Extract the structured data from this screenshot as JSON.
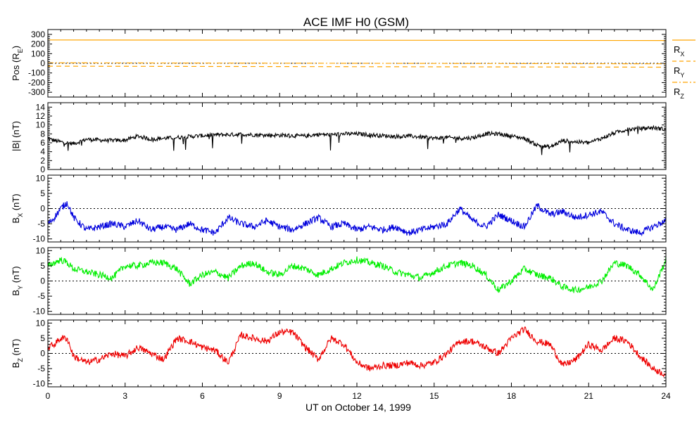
{
  "title": "ACE IMF H0 (GSM)",
  "x_axis_title": "UT on October 14, 1999",
  "x_ticks": [
    "0",
    "3",
    "6",
    "9",
    "12",
    "15",
    "18",
    "21",
    "24"
  ],
  "chart_data": [
    {
      "type": "line",
      "ylabel": "Pos (RE)",
      "ylabel_main": "Pos (R",
      "ylabel_sub": "E",
      "ylabel_tail": ")",
      "ylim": [
        -350,
        350
      ],
      "yticks": [
        -300,
        -200,
        -100,
        0,
        100,
        200,
        300
      ],
      "zero_line": true,
      "grid": false,
      "legend_position": "right",
      "series": [
        {
          "name": "RX",
          "name_main": "R",
          "name_sub": "X",
          "style": "solid",
          "color": "#FFA500",
          "x": [
            0,
            24
          ],
          "values": [
            242,
            236
          ]
        },
        {
          "name": "RY",
          "name_main": "R",
          "name_sub": "Y",
          "style": "dashed",
          "color": "#FFA500",
          "x": [
            0,
            24
          ],
          "values": [
            -30,
            -40
          ]
        },
        {
          "name": "RZ",
          "name_main": "R",
          "name_sub": "Z",
          "style": "dashdot",
          "color": "#FFA500",
          "x": [
            0,
            24
          ],
          "values": [
            5,
            -5
          ]
        }
      ]
    },
    {
      "type": "line",
      "ylabel": "|B| (nT)",
      "ylim": [
        0,
        15
      ],
      "yticks": [
        0,
        2,
        4,
        6,
        8,
        10,
        12,
        14
      ],
      "zero_line": false,
      "grid": false,
      "series": [
        {
          "name": "",
          "color": "#000000",
          "x": [
            0,
            0.25,
            0.5,
            0.75,
            1,
            1.5,
            2,
            2.5,
            3,
            3.5,
            4,
            4.5,
            5,
            5.5,
            6,
            6.5,
            7,
            7.5,
            8,
            8.5,
            9,
            9.5,
            10,
            10.5,
            11,
            11.5,
            12,
            12.5,
            13,
            13.5,
            14,
            14.5,
            15,
            15.5,
            16,
            16.5,
            17,
            17.5,
            18,
            18.5,
            19,
            19.5,
            20,
            20.5,
            21,
            21.5,
            22,
            22.5,
            23,
            23.5,
            24
          ],
          "values": [
            7,
            6.5,
            6.2,
            6,
            5.8,
            6.8,
            6.6,
            6.5,
            6.6,
            7.5,
            6.8,
            7,
            7.2,
            7.4,
            7.6,
            7.8,
            7.8,
            7.9,
            7.8,
            7.7,
            7.7,
            7.6,
            7.5,
            7.9,
            7.8,
            8,
            8,
            7.8,
            7.6,
            7.4,
            7.5,
            7.3,
            7,
            7.2,
            7,
            7.1,
            8,
            8,
            7.5,
            7,
            5.5,
            5,
            6.5,
            6.2,
            6,
            7,
            8.2,
            9,
            9.2,
            9.4,
            9
          ]
        }
      ]
    },
    {
      "type": "line",
      "ylabel": "BX (nT)",
      "ylabel_main": "B",
      "ylabel_sub": "X",
      "ylabel_tail": " (nT)",
      "ylim": [
        -11,
        11
      ],
      "yticks": [
        -10,
        -5,
        0,
        5,
        10
      ],
      "zero_line": true,
      "grid": false,
      "series": [
        {
          "name": "",
          "color": "#0000DD",
          "x": [
            0,
            0.25,
            0.5,
            0.75,
            1,
            1.5,
            2,
            2.5,
            3,
            3.5,
            4,
            4.5,
            5,
            5.5,
            6,
            6.5,
            7,
            7.5,
            8,
            8.5,
            9,
            9.5,
            10,
            10.5,
            11,
            11.5,
            12,
            12.5,
            13,
            13.5,
            14,
            14.5,
            15,
            15.5,
            16,
            16.5,
            17,
            17.5,
            18,
            18.5,
            19,
            19.5,
            20,
            20.5,
            21,
            21.5,
            22,
            22.5,
            23,
            23.5,
            24
          ],
          "values": [
            -5,
            -3,
            0,
            2,
            -3,
            -7,
            -6,
            -5,
            -6,
            -4,
            -7,
            -6,
            -7,
            -5,
            -7,
            -8,
            -3,
            -5,
            -6,
            -4,
            -6,
            -7,
            -5,
            -3,
            -6,
            -5,
            -7,
            -6,
            -7,
            -6,
            -8,
            -7,
            -6,
            -5,
            0,
            -4,
            -6,
            -2,
            -4,
            -6,
            1,
            -2,
            -1,
            -3,
            -2,
            -1,
            -5,
            -7,
            -8,
            -6,
            -4
          ]
        }
      ]
    },
    {
      "type": "line",
      "ylabel": "BY (nT)",
      "ylabel_main": "B",
      "ylabel_sub": "Y",
      "ylabel_tail": " (nT)",
      "ylim": [
        -11,
        11
      ],
      "yticks": [
        -10,
        -5,
        0,
        5,
        10
      ],
      "zero_line": true,
      "grid": false,
      "series": [
        {
          "name": "",
          "color": "#00EE00",
          "x": [
            0,
            0.25,
            0.5,
            0.75,
            1,
            1.5,
            2,
            2.5,
            3,
            3.5,
            4,
            4.5,
            5,
            5.5,
            6,
            6.5,
            7,
            7.5,
            8,
            8.5,
            9,
            9.5,
            10,
            10.5,
            11,
            11.5,
            12,
            12.5,
            13,
            13.5,
            14,
            14.5,
            15,
            15.5,
            16,
            16.5,
            17,
            17.5,
            18,
            18.5,
            19,
            19.5,
            20,
            20.5,
            21,
            21.5,
            22,
            22.5,
            23,
            23.5,
            24
          ],
          "values": [
            5,
            6,
            7,
            6,
            4,
            3,
            2,
            1,
            5,
            5,
            6,
            6,
            4,
            -1,
            2,
            3,
            1,
            5,
            6,
            3,
            2,
            5,
            4,
            2,
            4,
            6,
            7,
            6,
            5,
            3,
            2,
            1,
            3,
            5,
            6,
            5,
            2,
            -3,
            0,
            4,
            2,
            1,
            -2,
            -3,
            -2,
            0,
            6,
            5,
            2,
            -3,
            7
          ]
        }
      ]
    },
    {
      "type": "line",
      "ylabel": "BZ (nT)",
      "ylabel_main": "B",
      "ylabel_sub": "Z",
      "ylabel_tail": " (nT)",
      "ylim": [
        -11,
        11
      ],
      "yticks": [
        -10,
        -5,
        0,
        5,
        10
      ],
      "zero_line": true,
      "grid": false,
      "series": [
        {
          "name": "",
          "color": "#EE0000",
          "x": [
            0,
            0.25,
            0.5,
            0.75,
            1,
            1.5,
            2,
            2.5,
            3,
            3.5,
            4,
            4.5,
            5,
            5.5,
            6,
            6.5,
            7,
            7.5,
            8,
            8.5,
            9,
            9.5,
            10,
            10.5,
            11,
            11.5,
            12,
            12.5,
            13,
            13.5,
            14,
            14.5,
            15,
            15.5,
            16,
            16.5,
            17,
            17.5,
            18,
            18.5,
            19,
            19.5,
            20,
            20.5,
            21,
            21.5,
            22,
            22.5,
            23,
            23.5,
            24
          ],
          "values": [
            2,
            3,
            5,
            5,
            -1,
            -3,
            -2,
            0,
            -1,
            2,
            0,
            -2,
            5,
            4,
            2,
            1,
            -3,
            6,
            5,
            4,
            7,
            7,
            2,
            -2,
            5,
            3,
            -3,
            -5,
            -4,
            -4,
            -3,
            -4,
            -3,
            0,
            4,
            4,
            2,
            0,
            5,
            8,
            4,
            3,
            -4,
            -2,
            3,
            1,
            5,
            4,
            -1,
            -5,
            -7
          ]
        }
      ]
    }
  ]
}
